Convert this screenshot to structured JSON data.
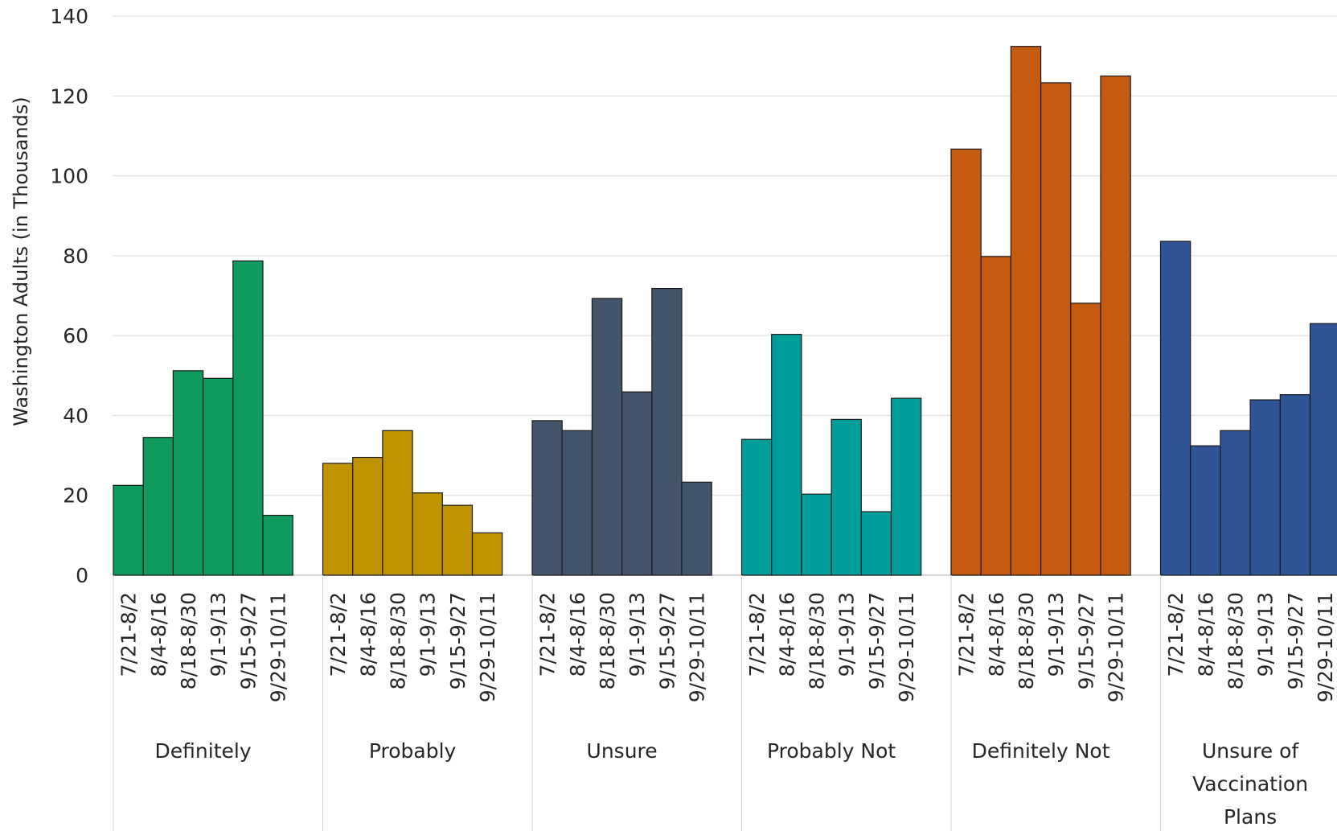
{
  "chart_data": {
    "type": "bar",
    "title": "",
    "xlabel": "",
    "ylabel": "Washington Adults (in Thousands)",
    "ylim": [
      0,
      140
    ],
    "yticks": [
      0,
      20,
      40,
      60,
      80,
      100,
      120,
      140
    ],
    "grid": true,
    "legend": "none",
    "periods": [
      "7/21-8/2",
      "8/4-8/16",
      "8/18-8/30",
      "9/1-9/13",
      "9/15-9/27",
      "9/29-10/11"
    ],
    "groups": [
      {
        "name": "Definitely",
        "color": "#0f9a5e",
        "values": [
          22.5,
          34.5,
          51.2,
          49.3,
          78.7,
          15.0
        ]
      },
      {
        "name": "Probably",
        "color": "#c09300",
        "values": [
          28.0,
          29.5,
          36.2,
          20.6,
          17.5,
          10.6
        ]
      },
      {
        "name": "Unsure",
        "color": "#44546a",
        "values": [
          38.7,
          36.2,
          69.3,
          45.9,
          71.8,
          23.3
        ]
      },
      {
        "name": "Probably Not",
        "color": "#009e9a",
        "values": [
          34.0,
          60.3,
          20.3,
          39.0,
          15.9,
          44.3
        ]
      },
      {
        "name": "Definitely Not",
        "color": "#c55a11",
        "values": [
          106.7,
          79.8,
          132.4,
          123.3,
          68.1,
          125.0
        ]
      },
      {
        "name": "Unsure of Vaccination Plans",
        "color": "#2f5597",
        "values": [
          83.6,
          32.4,
          36.2,
          43.9,
          45.2,
          63.0
        ]
      }
    ]
  }
}
